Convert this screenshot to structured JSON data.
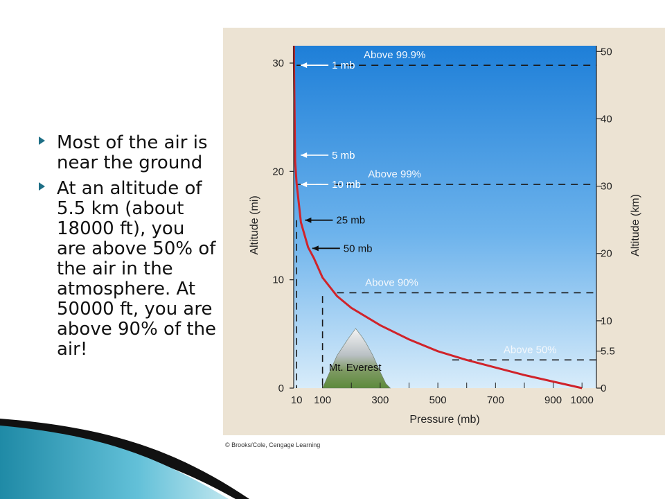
{
  "bullets": [
    "Most of the air is near the ground",
    "At an altitude of 5.5 km (about 18000 ft), you are above 50% of the air in the atmosphere. At 50000 ft, you are above 90% of the air!"
  ],
  "colors": {
    "curve": "#d0232a",
    "sky_top": "#1e7fd8",
    "sky_bottom": "#d8ecfa",
    "frame": "#ece3d3",
    "bullet_arrow": "#1e6f86"
  },
  "chart_data": {
    "type": "line",
    "xlabel": "Pressure (mb)",
    "ylabel": "Altitude (mi)",
    "y2label": "Altitude (km)",
    "xlim": [
      0,
      1050
    ],
    "ylim": [
      0,
      31.6
    ],
    "x_ticks": [
      10,
      100,
      300,
      500,
      700,
      900,
      1000
    ],
    "y_ticks": [
      0,
      10,
      20,
      30
    ],
    "y2_ticks": [
      0,
      5.5,
      10,
      20,
      30,
      40,
      50
    ],
    "grid": false,
    "series": [
      {
        "x": [
          1000,
          900,
          800,
          700,
          600,
          500,
          400,
          300,
          200,
          150,
          100,
          70,
          50,
          25,
          10,
          5,
          1,
          1
        ],
        "y": [
          0,
          0.6,
          1.2,
          1.9,
          2.6,
          3.4,
          4.5,
          5.8,
          7.4,
          8.5,
          10.2,
          12.0,
          13.0,
          15.3,
          18.9,
          20.9,
          30.0,
          31.6
        ]
      }
    ],
    "pressure_labels": [
      {
        "label": "1 mb",
        "alt_mi": 29.8
      },
      {
        "label": "5 mb",
        "alt_mi": 21.5
      },
      {
        "label": "10 mb",
        "alt_mi": 18.8
      },
      {
        "label": "25 mb",
        "alt_mi": 15.5
      },
      {
        "label": "50 mb",
        "alt_mi": 12.9
      }
    ],
    "percent_lines": [
      {
        "label": "Above 99.9%",
        "alt_mi": 29.8,
        "x_start": 10
      },
      {
        "label": "Above 99%",
        "alt_mi": 18.8,
        "x_start": 10
      },
      {
        "label": "Above 90%",
        "alt_mi": 8.8,
        "x_start": 150
      },
      {
        "label": "Above 50%",
        "alt_mi": 2.6,
        "x_start": 550
      }
    ],
    "vertical_dashes": [
      {
        "x": 10,
        "alt_mi": 15.5
      },
      {
        "x": 100,
        "alt_mi": 8.5
      }
    ],
    "annotations": [
      "Mt. Everest"
    ],
    "credit": "© Brooks/Cole, Cengage Learning"
  }
}
